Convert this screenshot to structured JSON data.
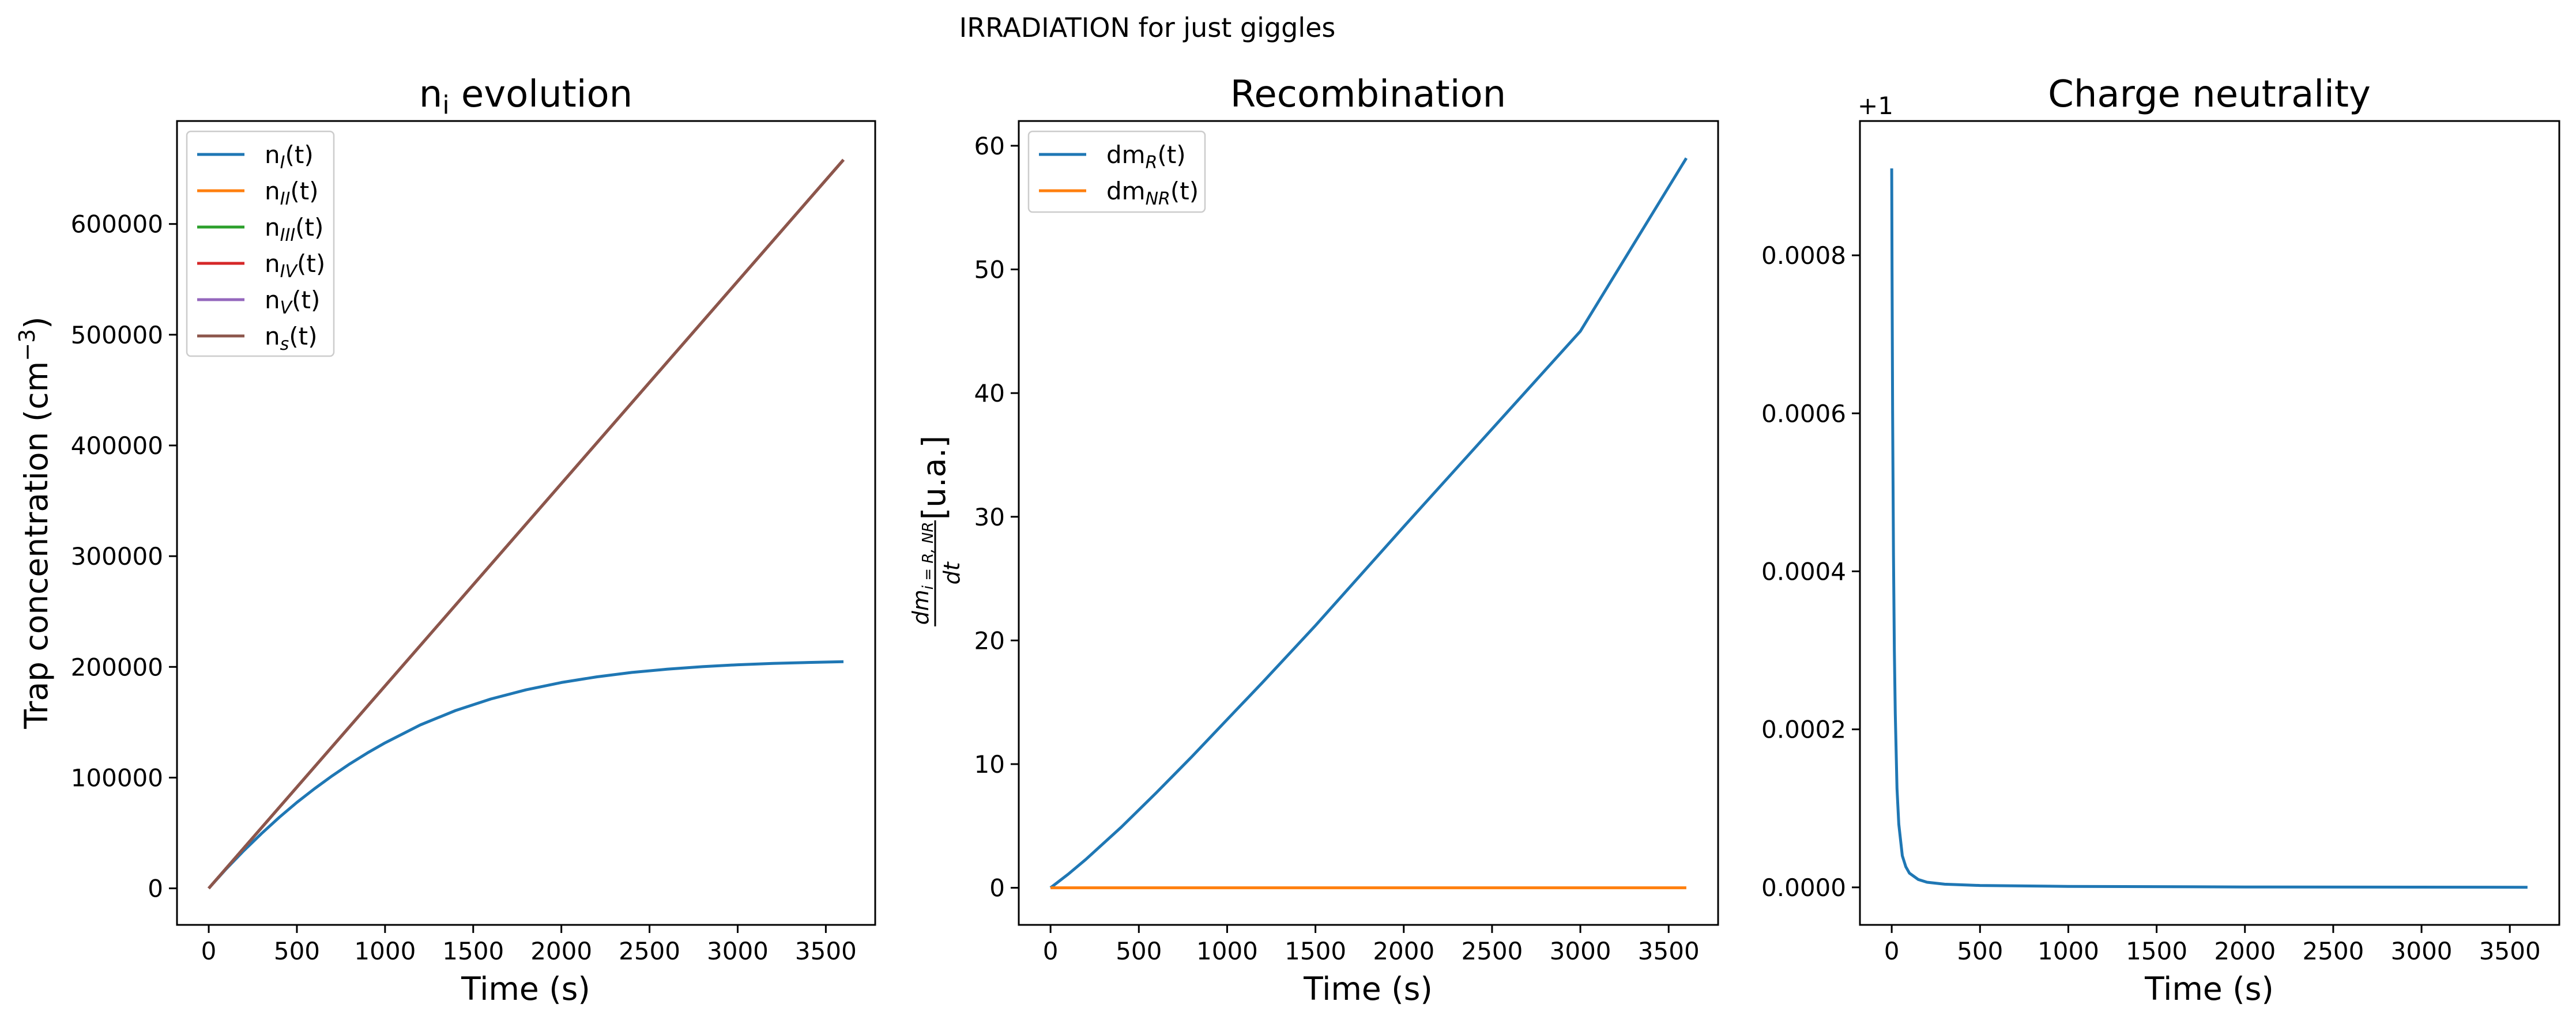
{
  "figure": {
    "suptitle": "IRRADIATION for just giggles"
  },
  "chart_data": [
    {
      "type": "line",
      "title": "n_i evolution",
      "xlabel": "Time (s)",
      "ylabel": "Trap concentration (cm^-3)",
      "xlim": [
        -180,
        3780
      ],
      "ylim": [
        -33000,
        693000
      ],
      "xticks": [
        0,
        500,
        1000,
        1500,
        2000,
        2500,
        3000,
        3500
      ],
      "yticks": [
        0,
        100000,
        200000,
        300000,
        400000,
        500000,
        600000
      ],
      "grid": false,
      "legend": "top-left",
      "series": [
        {
          "name": "n_I(t)",
          "color": "#1f77b4",
          "x": [
            0,
            100,
            200,
            300,
            400,
            500,
            600,
            700,
            800,
            900,
            1000,
            1200,
            1400,
            1600,
            1800,
            2000,
            2200,
            2400,
            2600,
            2800,
            3000,
            3200,
            3400,
            3600
          ],
          "y": [
            0,
            17700,
            34200,
            49600,
            64100,
            77600,
            90000,
            101600,
            112400,
            122300,
            131400,
            147600,
            160600,
            171000,
            179300,
            185900,
            191000,
            195000,
            197900,
            200200,
            201900,
            203100,
            204000,
            204700
          ]
        },
        {
          "name": "n_II(t)",
          "color": "#ff7f0e",
          "x": [
            0,
            3600
          ],
          "y": [
            0,
            658000
          ]
        },
        {
          "name": "n_III(t)",
          "color": "#2ca02c",
          "x": [
            0,
            3600
          ],
          "y": [
            0,
            658000
          ]
        },
        {
          "name": "n_IV(t)",
          "color": "#d62728",
          "x": [
            0,
            3600
          ],
          "y": [
            0,
            658000
          ]
        },
        {
          "name": "n_V(t)",
          "color": "#9467bd",
          "x": [
            0,
            3600
          ],
          "y": [
            0,
            658000
          ]
        },
        {
          "name": "n_s(t)",
          "color": "#8c564b",
          "x": [
            0,
            3600
          ],
          "y": [
            0,
            658000
          ]
        }
      ]
    },
    {
      "type": "line",
      "title": "Recombination",
      "xlabel": "Time (s)",
      "ylabel": "dm_{i=R,NR}/dt [u.a.]",
      "xlim": [
        -180,
        3780
      ],
      "ylim": [
        -3,
        62
      ],
      "xticks": [
        0,
        500,
        1000,
        1500,
        2000,
        2500,
        3000,
        3500
      ],
      "yticks": [
        0,
        10,
        20,
        30,
        40,
        50,
        60
      ],
      "grid": false,
      "legend": "top-left",
      "series": [
        {
          "name": "dm_R(t)",
          "color": "#1f77b4",
          "x": [
            0,
            100,
            200,
            400,
            600,
            800,
            1000,
            1200,
            1500,
            2000,
            2500,
            3000,
            3600
          ],
          "y": [
            0,
            1.1,
            2.3,
            4.9,
            7.7,
            10.6,
            13.6,
            16.6,
            21.2,
            29.2,
            37.1,
            45.0,
            59.0
          ]
        },
        {
          "name": "dm_NR(t)",
          "color": "#ff7f0e",
          "x": [
            0,
            3600
          ],
          "y": [
            0,
            0
          ]
        }
      ]
    },
    {
      "type": "line",
      "title": "Charge neutrality",
      "xlabel": "Time (s)",
      "ylabel": "",
      "offset_label": "+1",
      "xlim": [
        -180,
        3780
      ],
      "ylim": [
        -4.75e-05,
        0.00097
      ],
      "xticks": [
        0,
        500,
        1000,
        1500,
        2000,
        2500,
        3000,
        3500
      ],
      "yticks": [
        0.0,
        0.0002,
        0.0004,
        0.0006,
        0.0008
      ],
      "ytick_labels": [
        "0.0000",
        "0.0002",
        "0.0004",
        "0.0006",
        "0.0008"
      ],
      "grid": false,
      "legend": "none",
      "series": [
        {
          "color": "#1f77b4",
          "x": [
            0,
            2,
            5,
            10,
            15,
            20,
            30,
            40,
            60,
            80,
            100,
            150,
            200,
            300,
            500,
            1000,
            2000,
            3600
          ],
          "y": [
            0.00091,
            0.00078,
            0.0006,
            0.00042,
            0.0003,
            0.00022,
            0.000125,
            8e-05,
            4e-05,
            2.6e-05,
            1.8e-05,
            1e-05,
            6.5e-06,
            4e-06,
            2.4e-06,
            1.2e-06,
            5e-07,
            1e-07
          ]
        }
      ]
    }
  ]
}
